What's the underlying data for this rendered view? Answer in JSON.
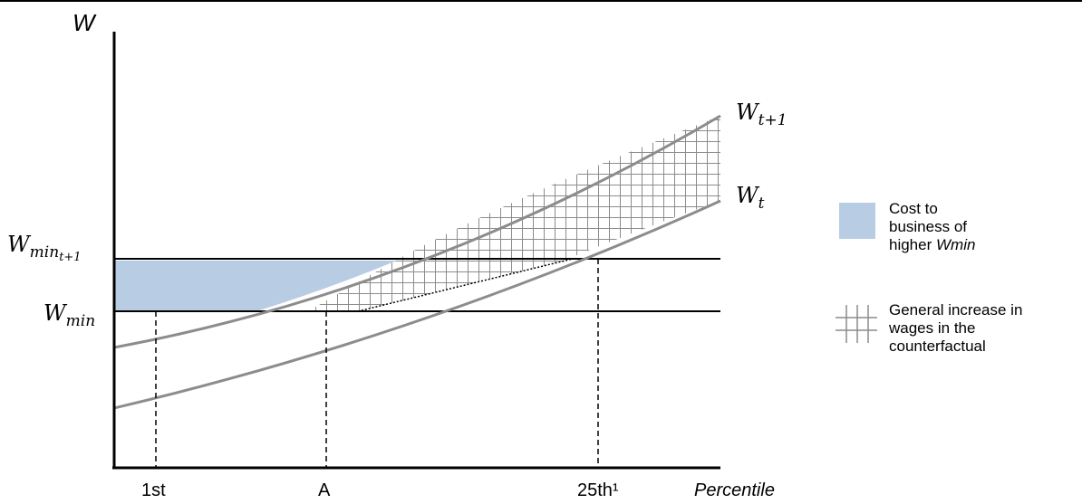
{
  "axes": {
    "y_label": "W",
    "x_label": "Percentile",
    "x_ticks": [
      "1st",
      "A",
      "25th¹"
    ]
  },
  "curves": {
    "upper": {
      "base": "W",
      "subscript": "t+1"
    },
    "lower": {
      "base": "W",
      "subscript": "t"
    }
  },
  "levels": {
    "new_min": {
      "base": "W",
      "subscript": "min",
      "sub_subscript": "t+1"
    },
    "old_min": {
      "base": "W",
      "subscript": "min"
    }
  },
  "legend": {
    "cost": {
      "line1": "Cost to",
      "line2": "business of",
      "line3_prefix": "higher ",
      "line3_em": "Wmin"
    },
    "general": {
      "line1": "General increase in",
      "line2": "wages in the",
      "line3": "counterfactual"
    }
  },
  "colors": {
    "cost_fill": "#b8cce4",
    "curve": "#8c8c8c",
    "axis": "#000000",
    "hatch": "#8c8c8c"
  }
}
